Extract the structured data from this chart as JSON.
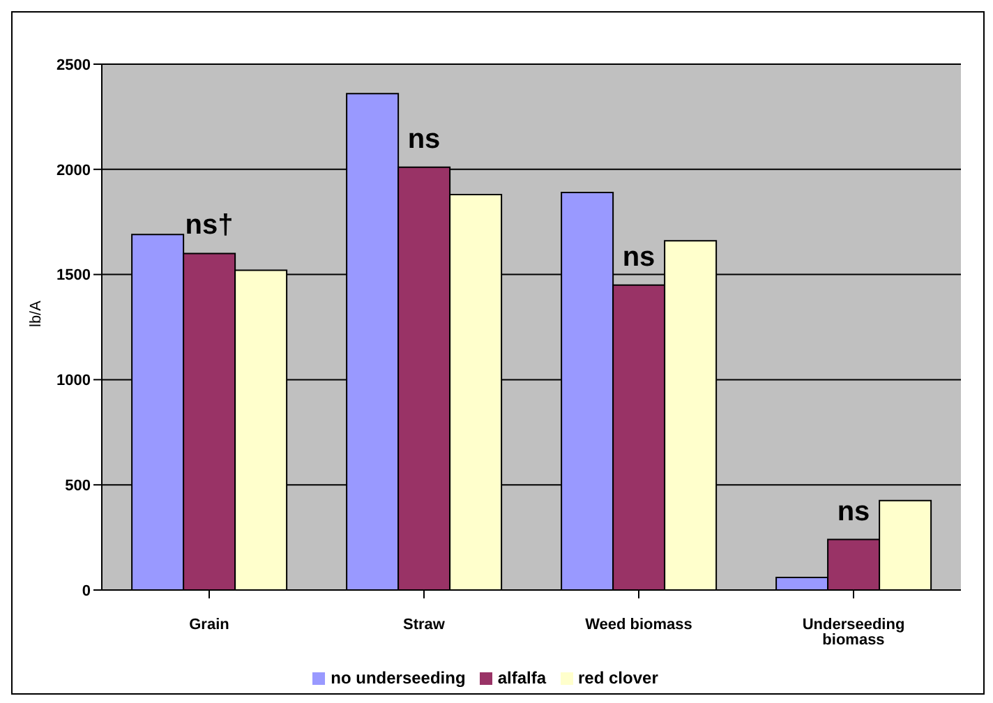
{
  "chart_data": {
    "type": "bar",
    "ylabel": "lb/A",
    "categories": [
      "Grain",
      "Straw",
      "Weed biomass",
      "Underseeding biomass"
    ],
    "series": [
      {
        "name": "no underseeding",
        "color": "#9999ff",
        "values": [
          1690,
          2360,
          1890,
          60
        ]
      },
      {
        "name": "alfalfa",
        "color": "#993366",
        "values": [
          1600,
          2010,
          1450,
          240
        ]
      },
      {
        "name": "red clover",
        "color": "#ffffcc",
        "values": [
          1520,
          1880,
          1660,
          425
        ]
      }
    ],
    "ylim": [
      0,
      2500
    ],
    "yticks": [
      0,
      500,
      1000,
      1500,
      2000,
      2500
    ],
    "grid": "y",
    "legend": "bottom",
    "annotations": [
      "ns†",
      "ns",
      "ns",
      "ns"
    ]
  }
}
